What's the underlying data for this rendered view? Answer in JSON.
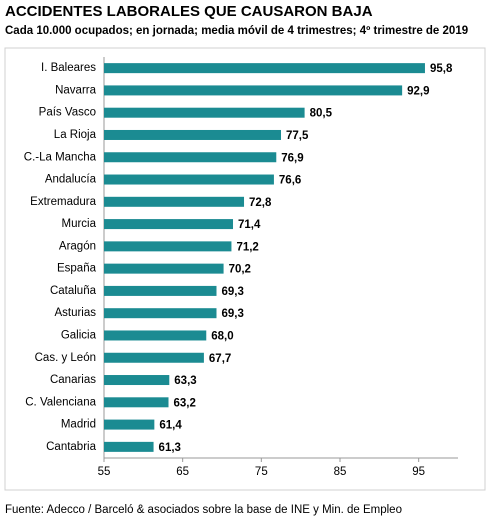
{
  "chart_data": {
    "type": "barh",
    "title": "ACCIDENTES LABORALES QUE CAUSARON BAJA",
    "subtitle": "Cada 10.000 ocupados; en jornada; media móvil de 4 trimestres; 4º trimestre de 2019",
    "source": "Fuente: Adecco / Barceló & asociados sobre la base de INE y Min. de Empleo",
    "categories": [
      "I. Baleares",
      "Navarra",
      "País Vasco",
      "La Rioja",
      "C.-La Mancha",
      "Andalucía",
      "Extremadura",
      "Murcia",
      "Aragón",
      "España",
      "Cataluña",
      "Asturias",
      "Galicia",
      "Cas. y León",
      "Canarias",
      "C. Valenciana",
      "Madrid",
      "Cantabria"
    ],
    "values": [
      95.8,
      92.9,
      80.5,
      77.5,
      76.9,
      76.6,
      72.8,
      71.4,
      71.2,
      70.2,
      69.3,
      69.3,
      68.0,
      67.7,
      63.3,
      63.2,
      61.4,
      61.3
    ],
    "value_labels": [
      "95,8",
      "92,9",
      "80,5",
      "77,5",
      "76,9",
      "76,6",
      "72,8",
      "71,4",
      "71,2",
      "70,2",
      "69,3",
      "69,3",
      "68,0",
      "67,7",
      "63,3",
      "63,2",
      "61,4",
      "61,3"
    ],
    "color": "#1b8b92",
    "xlim": [
      55,
      100
    ],
    "xticks": [
      55,
      65,
      75,
      85,
      95
    ]
  }
}
